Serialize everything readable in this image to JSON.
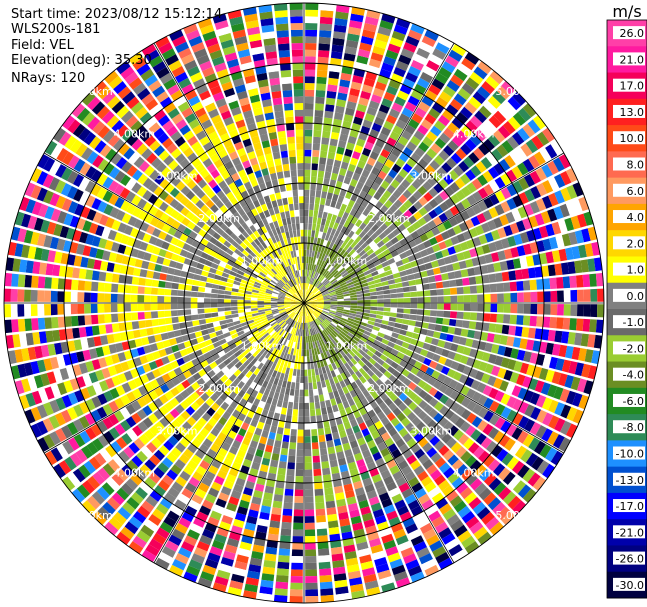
{
  "header": {
    "start_time": "Start time: 2023/08/12 15:12:14",
    "instrument": "WLS200s-181",
    "field": "Field: VEL",
    "elevation": "Elevation(deg): 35.30",
    "nrays": "NRays: 120"
  },
  "chart_data": {
    "type": "heatmap",
    "projection": "polar",
    "nrays": 120,
    "range_rings_km": [
      1.0,
      2.0,
      3.0,
      4.0,
      5.0
    ],
    "ring_labels": [
      "1.00km",
      "2.00km",
      "3.00km",
      "4.00km",
      "5.00km"
    ],
    "grid": true,
    "colorbar": {
      "unit": "m/s",
      "tick_labels": [
        "26.0",
        "21.0",
        "17.0",
        "13.0",
        "10.0",
        "8.0",
        "6.0",
        "4.0",
        "2.0",
        "1.0",
        "0.0",
        "-1.0",
        "-2.0",
        "-4.0",
        "-6.0",
        "-8.0",
        "-10.0",
        "-13.0",
        "-17.0",
        "-21.0",
        "-26.0",
        "-30.0"
      ],
      "colors": [
        "#ff3fa8",
        "#ff1aa0",
        "#f5005a",
        "#ff2020",
        "#ff4a18",
        "#ff6a50",
        "#ff9a60",
        "#ffa500",
        "#ffd700",
        "#ffff00",
        "#808080",
        "#6a6a6a",
        "#9acd32",
        "#6b8e23",
        "#228b22",
        "#2e8b57",
        "#1e90ff",
        "#0050d0",
        "#0000ff",
        "#0000aa",
        "#000080",
        "#000040"
      ]
    }
  }
}
